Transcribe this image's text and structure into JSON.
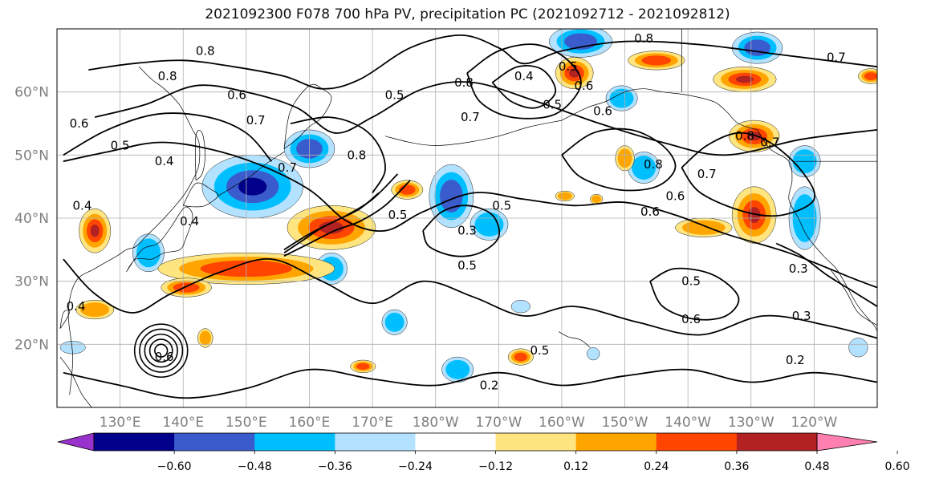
{
  "title": "2021092300 F078 700 hPa PV, precipitation PC (2021092712 - 2021092812)",
  "colors": {
    "grid": "#b0b0b0",
    "contour": "#000000",
    "coast": "#000000",
    "tick_label": "#7f7f7f"
  },
  "map": {
    "lon_range": [
      120,
      250
    ],
    "lat_range": [
      10,
      70
    ],
    "lat_labels": [
      "20°N",
      "30°N",
      "40°N",
      "50°N",
      "60°N"
    ],
    "lon_labels": [
      "130°E",
      "140°E",
      "150°E",
      "160°E",
      "170°E",
      "180°W",
      "170°W",
      "160°W",
      "150°W",
      "140°W",
      "130°W",
      "120°W"
    ]
  },
  "colorbar": {
    "ticks": [
      "−0.60",
      "−0.48",
      "−0.36",
      "−0.24",
      "−0.12",
      "0.12",
      "0.24",
      "0.36",
      "0.48",
      "0.60"
    ],
    "colors": [
      "#9932cc",
      "#00008b",
      "#3a5bcc",
      "#00bfff",
      "#b2e2ff",
      "#ffffff",
      "#ffe57f",
      "#ffa500",
      "#ff4500",
      "#b22222",
      "#ff80b0"
    ]
  },
  "contour_labels": [
    {
      "text": "0.8",
      "lon": 143.5,
      "lat": 66.5
    },
    {
      "text": "0.8",
      "lon": 137.5,
      "lat": 62.5
    },
    {
      "text": "0.6",
      "lon": 148.5,
      "lat": 59.5
    },
    {
      "text": "0.7",
      "lon": 151.5,
      "lat": 55.5
    },
    {
      "text": "0.6",
      "lon": 123.5,
      "lat": 55.0
    },
    {
      "text": "0.5",
      "lon": 130.0,
      "lat": 51.5
    },
    {
      "text": "0.4",
      "lon": 137.0,
      "lat": 49.0
    },
    {
      "text": "0.4",
      "lon": 141.0,
      "lat": 39.5
    },
    {
      "text": "0.4",
      "lon": 124.0,
      "lat": 42.0
    },
    {
      "text": "0.4",
      "lon": 123.0,
      "lat": 26.0
    },
    {
      "text": "0.8",
      "lon": 167.5,
      "lat": 50.0
    },
    {
      "text": "0.7",
      "lon": 156.5,
      "lat": 48.0
    },
    {
      "text": "0.5",
      "lon": 173.5,
      "lat": 59.5
    },
    {
      "text": "0.8",
      "lon": 184.5,
      "lat": 61.5
    },
    {
      "text": "0.7",
      "lon": 185.5,
      "lat": 56.0
    },
    {
      "text": "0.4",
      "lon": 194.0,
      "lat": 62.5
    },
    {
      "text": "0.5",
      "lon": 201.0,
      "lat": 64.0
    },
    {
      "text": "0.6",
      "lon": 203.5,
      "lat": 61.0
    },
    {
      "text": "0.5",
      "lon": 198.5,
      "lat": 58.0
    },
    {
      "text": "0.6",
      "lon": 206.5,
      "lat": 57.0
    },
    {
      "text": "0.8",
      "lon": 213.0,
      "lat": 68.5
    },
    {
      "text": "0.8",
      "lon": 214.5,
      "lat": 48.5
    },
    {
      "text": "0.7",
      "lon": 223.0,
      "lat": 47.0
    },
    {
      "text": "0.6",
      "lon": 218.0,
      "lat": 43.5
    },
    {
      "text": "0.6",
      "lon": 214.0,
      "lat": 41.0
    },
    {
      "text": "0.8",
      "lon": 229.0,
      "lat": 53.0
    },
    {
      "text": "0.7",
      "lon": 233.0,
      "lat": 52.0
    },
    {
      "text": "0.7",
      "lon": 243.5,
      "lat": 65.5
    },
    {
      "text": "0.5",
      "lon": 174.0,
      "lat": 40.5
    },
    {
      "text": "0.3",
      "lon": 185.0,
      "lat": 38.0
    },
    {
      "text": "0.5",
      "lon": 185.0,
      "lat": 32.5
    },
    {
      "text": "0.5",
      "lon": 190.5,
      "lat": 42.0
    },
    {
      "text": "0.5",
      "lon": 220.5,
      "lat": 30.0
    },
    {
      "text": "0.6",
      "lon": 220.5,
      "lat": 24.0
    },
    {
      "text": "0.5",
      "lon": 196.5,
      "lat": 19.0
    },
    {
      "text": "0.3",
      "lon": 237.5,
      "lat": 32.0
    },
    {
      "text": "0.3",
      "lon": 238.0,
      "lat": 24.5
    },
    {
      "text": "0.2",
      "lon": 237.0,
      "lat": 17.5
    },
    {
      "text": "0.2",
      "lon": 188.5,
      "lat": 13.5
    },
    {
      "text": "0.6",
      "lon": 137.0,
      "lat": 18.0
    }
  ],
  "precip_anomalies": [
    {
      "sign": "neg",
      "level": 3,
      "lon": 151.0,
      "lat": 45.0,
      "rx": 8,
      "ry": 5
    },
    {
      "sign": "neg",
      "level": 2,
      "lon": 160.0,
      "lat": 51.0,
      "rx": 4,
      "ry": 3
    },
    {
      "sign": "neg",
      "level": 1,
      "lon": 134.5,
      "lat": 34.5,
      "rx": 2.5,
      "ry": 3
    },
    {
      "sign": "neg",
      "level": 1,
      "lon": 163.5,
      "lat": 32.0,
      "rx": 2.5,
      "ry": 2.5
    },
    {
      "sign": "neg",
      "level": 2,
      "lon": 182.5,
      "lat": 43.5,
      "rx": 3.5,
      "ry": 5
    },
    {
      "sign": "neg",
      "level": 1,
      "lon": 188.5,
      "lat": 39.0,
      "rx": 3,
      "ry": 2.5
    },
    {
      "sign": "neg",
      "level": 2,
      "lon": 203.0,
      "lat": 68.0,
      "rx": 5,
      "ry": 2.5
    },
    {
      "sign": "neg",
      "level": 1,
      "lon": 209.5,
      "lat": 59.0,
      "rx": 2.5,
      "ry": 2
    },
    {
      "sign": "neg",
      "level": 1,
      "lon": 213.0,
      "lat": 48.0,
      "rx": 2.5,
      "ry": 2.5
    },
    {
      "sign": "neg",
      "level": 2,
      "lon": 231.0,
      "lat": 67.0,
      "rx": 4,
      "ry": 2.5
    },
    {
      "sign": "neg",
      "level": 1,
      "lon": 238.5,
      "lat": 49.0,
      "rx": 2.5,
      "ry": 2.5
    },
    {
      "sign": "neg",
      "level": 1,
      "lon": 238.5,
      "lat": 40.0,
      "rx": 2.5,
      "ry": 5
    },
    {
      "sign": "neg",
      "level": 1,
      "lon": 173.5,
      "lat": 23.5,
      "rx": 2,
      "ry": 2
    },
    {
      "sign": "neg",
      "level": 1,
      "lon": 183.5,
      "lat": 16.0,
      "rx": 2.5,
      "ry": 2
    },
    {
      "sign": "neg",
      "level": 0,
      "lon": 122.5,
      "lat": 19.5,
      "rx": 2,
      "ry": 1
    },
    {
      "sign": "neg",
      "level": 0,
      "lon": 193.5,
      "lat": 26.0,
      "rx": 1.5,
      "ry": 1
    },
    {
      "sign": "neg",
      "level": 0,
      "lon": 205.0,
      "lat": 18.5,
      "rx": 1,
      "ry": 1
    },
    {
      "sign": "neg",
      "level": 0,
      "lon": 247.0,
      "lat": 19.5,
      "rx": 1.5,
      "ry": 1.5
    },
    {
      "sign": "pos",
      "level": 3,
      "lon": 163.5,
      "lat": 38.5,
      "rx": 7,
      "ry": 3.5
    },
    {
      "sign": "pos",
      "level": 2,
      "lon": 150.0,
      "lat": 32.0,
      "rx": 14,
      "ry": 2.5
    },
    {
      "sign": "pos",
      "level": 2,
      "lon": 140.5,
      "lat": 29.0,
      "rx": 4,
      "ry": 1.5
    },
    {
      "sign": "pos",
      "level": 3,
      "lon": 126.0,
      "lat": 38.0,
      "rx": 2.5,
      "ry": 3.5
    },
    {
      "sign": "pos",
      "level": 1,
      "lon": 126.0,
      "lat": 25.5,
      "rx": 3,
      "ry": 1.5
    },
    {
      "sign": "pos",
      "level": 1,
      "lon": 143.5,
      "lat": 21.0,
      "rx": 1.2,
      "ry": 1.5
    },
    {
      "sign": "pos",
      "level": 2,
      "lon": 175.5,
      "lat": 44.5,
      "rx": 2.5,
      "ry": 1.5
    },
    {
      "sign": "pos",
      "level": 2,
      "lon": 168.5,
      "lat": 16.5,
      "rx": 2,
      "ry": 1
    },
    {
      "sign": "pos",
      "level": 2,
      "lon": 193.5,
      "lat": 18.0,
      "rx": 2,
      "ry": 1.3
    },
    {
      "sign": "pos",
      "level": 3,
      "lon": 202.0,
      "lat": 63.0,
      "rx": 3,
      "ry": 2.5
    },
    {
      "sign": "pos",
      "level": 2,
      "lon": 215.0,
      "lat": 65.0,
      "rx": 4.5,
      "ry": 1.5
    },
    {
      "sign": "pos",
      "level": 3,
      "lon": 229.0,
      "lat": 62.0,
      "rx": 5,
      "ry": 2
    },
    {
      "sign": "pos",
      "level": 3,
      "lon": 230.5,
      "lat": 53.0,
      "rx": 4,
      "ry": 2.5
    },
    {
      "sign": "pos",
      "level": 1,
      "lon": 210.0,
      "lat": 49.5,
      "rx": 1.5,
      "ry": 2
    },
    {
      "sign": "pos",
      "level": 3,
      "lon": 230.5,
      "lat": 40.5,
      "rx": 3.5,
      "ry": 4.5
    },
    {
      "sign": "pos",
      "level": 1,
      "lon": 222.5,
      "lat": 38.5,
      "rx": 4.5,
      "ry": 1.5
    },
    {
      "sign": "pos",
      "level": 1,
      "lon": 200.5,
      "lat": 43.5,
      "rx": 1.5,
      "ry": 0.8
    },
    {
      "sign": "pos",
      "level": 1,
      "lon": 205.5,
      "lat": 43.0,
      "rx": 1,
      "ry": 0.8
    },
    {
      "sign": "pos",
      "level": 2,
      "lon": 249.0,
      "lat": 62.5,
      "rx": 2,
      "ry": 1.2
    }
  ],
  "pv_contours": [
    {
      "level": "0.8",
      "lons": [
        125,
        132,
        140,
        148,
        156,
        162,
        168,
        176,
        184,
        190,
        194,
        200,
        210,
        222,
        234,
        246,
        250
      ],
      "lats": [
        63.5,
        64.5,
        65,
        64,
        62.5,
        60.5,
        62,
        67,
        69,
        67,
        64.5,
        66.5,
        68,
        67.5,
        66,
        64.5,
        64
      ]
    },
    {
      "level": "0.6",
      "lons": [
        126,
        134,
        142,
        150,
        158,
        164,
        170,
        178,
        186,
        196,
        206,
        216,
        226,
        238,
        250
      ],
      "lats": [
        56,
        58,
        61,
        60,
        57.5,
        53.5,
        56,
        60.5,
        61.5,
        58.5,
        55,
        52,
        50,
        52.5,
        54
      ]
    },
    {
      "level": "0.5",
      "lons": [
        121,
        128,
        136,
        144,
        152,
        160,
        166,
        172,
        178,
        186,
        194,
        202,
        210,
        218,
        226,
        236,
        246,
        250
      ],
      "lats": [
        49,
        50.5,
        52,
        51,
        48.5,
        44.5,
        39.5,
        38,
        41,
        44,
        43,
        42,
        42.5,
        40.5,
        37.5,
        34.5,
        30.5,
        29
      ]
    },
    {
      "level": "0.4",
      "lons": [
        121,
        126,
        132,
        138,
        146,
        154,
        162,
        170,
        178,
        186,
        194,
        202,
        212,
        222,
        232,
        242,
        250
      ],
      "lats": [
        33.5,
        28,
        25,
        28,
        31.5,
        33.5,
        30,
        26.5,
        30,
        27.5,
        24.5,
        26,
        23.5,
        21.5,
        24.5,
        23,
        21
      ]
    },
    {
      "level": "0.2",
      "lons": [
        121,
        130,
        140,
        150,
        160,
        170,
        180,
        190,
        200,
        210,
        220,
        230,
        240,
        250
      ],
      "lats": [
        15.5,
        13.5,
        11.5,
        13,
        16,
        14.5,
        13.5,
        15.5,
        13.5,
        15,
        16,
        14,
        15.5,
        14
      ]
    },
    {
      "level": "0.3",
      "lons": [
        178,
        181,
        185,
        189,
        190,
        187,
        183,
        179,
        178
      ],
      "lats": [
        38,
        41,
        42,
        40.5,
        37,
        34.5,
        34,
        35.5,
        38
      ]
    },
    {
      "level": "0.6",
      "lons": [
        200,
        205,
        211,
        216,
        218,
        215,
        209,
        203,
        200
      ],
      "lats": [
        50,
        53.5,
        54,
        51.5,
        48,
        45,
        44.5,
        46.5,
        50
      ]
    },
    {
      "level": "0.5",
      "lons": [
        185,
        190,
        196,
        201,
        203,
        199,
        192,
        187,
        185
      ],
      "lats": [
        63,
        66.5,
        67.5,
        65,
        61,
        56.5,
        56,
        58.5,
        63
      ]
    },
    {
      "level": "0.4",
      "lons": [
        189,
        193,
        197,
        199,
        196,
        192,
        189
      ],
      "lats": [
        61.5,
        64,
        63.5,
        60,
        57.5,
        58.5,
        61.5
      ]
    },
    {
      "level": "0.7",
      "lons": [
        121,
        128,
        136,
        144,
        150,
        154
      ],
      "lats": [
        50,
        54,
        56.5,
        56,
        53.5,
        49
      ]
    },
    {
      "level": "0.7",
      "lons": [
        157,
        163,
        168,
        171,
        172,
        170
      ],
      "lats": [
        55,
        56,
        54.5,
        51.5,
        47.5,
        44
      ]
    },
    {
      "level": "0.6",
      "lons": [
        156,
        159,
        162,
        166,
        170,
        174
      ],
      "lats": [
        34.5,
        36.5,
        38.5,
        40.5,
        43,
        47
      ]
    },
    {
      "level": "0.6",
      "lons": [
        156,
        160,
        164,
        168,
        172,
        176
      ],
      "lats": [
        34,
        36,
        38,
        39.5,
        42,
        46
      ]
    },
    {
      "level": "0.6",
      "lons": [
        156,
        160,
        164,
        168,
        171
      ],
      "lats": [
        35,
        37.5,
        39.5,
        41.5,
        44
      ]
    },
    {
      "level": "0.5",
      "lons": [
        214,
        218,
        224,
        228,
        226,
        221,
        216,
        214
      ],
      "lats": [
        30,
        32,
        31,
        27.5,
        24.5,
        24,
        26,
        30
      ]
    },
    {
      "level": "0.6",
      "lons": [
        219,
        223,
        228,
        233,
        238,
        240,
        235,
        229,
        222,
        219
      ],
      "lats": [
        48,
        51.5,
        53.5,
        52,
        47.5,
        43,
        40.5,
        41,
        44,
        48
      ]
    },
    {
      "level": "0.3",
      "lons": [
        234,
        238,
        242,
        246,
        250
      ],
      "lats": [
        36,
        34,
        31,
        28.5,
        26
      ]
    }
  ],
  "vortex": {
    "lon": 136.5,
    "lat": 19.0,
    "radii": [
      1.0,
      1.8,
      2.6,
      3.4,
      4.2
    ]
  },
  "coastlines": [
    {
      "name": "east-asia",
      "lons": [
        122,
        122.5,
        121.8,
        123,
        126,
        129.5,
        131,
        132.5,
        134,
        137,
        140,
        141.5,
        142.5,
        142.5,
        141.5,
        140,
        139,
        137,
        135,
        133
      ],
      "lats": [
        12,
        18,
        25,
        30,
        32,
        34,
        35,
        35.5,
        37,
        40,
        43.5,
        46,
        48.5,
        52,
        54,
        57,
        58.5,
        60.5,
        62,
        64
      ]
    },
    {
      "name": "japan",
      "lons": [
        131,
        132.5,
        135,
        137,
        139.5,
        140.5,
        141.5,
        141,
        140,
        138,
        136,
        133.5,
        131
      ],
      "lats": [
        31.5,
        33.5,
        33.5,
        34.5,
        35,
        37,
        40,
        41.5,
        41.5,
        38.5,
        36,
        35,
        31.5
      ]
    },
    {
      "name": "hokkaido",
      "lons": [
        140,
        141.5,
        143.5,
        145.5,
        144.5,
        142,
        140
      ],
      "lats": [
        42,
        41.8,
        42,
        43.5,
        44.5,
        45.5,
        42
      ]
    },
    {
      "name": "sakhalin",
      "lons": [
        142,
        143,
        143.5,
        143,
        142,
        142
      ],
      "lats": [
        46,
        47,
        50,
        53.5,
        53,
        46
      ]
    },
    {
      "name": "kamchatka",
      "lons": [
        156,
        158,
        160,
        162,
        163.5,
        162,
        160,
        157,
        156
      ],
      "lats": [
        51,
        52.5,
        54.5,
        56,
        59,
        60.5,
        61,
        57,
        51
      ]
    },
    {
      "name": "kurils",
      "lons": [
        145.5,
        148,
        150.5,
        153,
        156
      ],
      "lats": [
        43.5,
        45,
        46.5,
        48.5,
        50.5
      ]
    },
    {
      "name": "aleutians",
      "lons": [
        172,
        176,
        180,
        185,
        190,
        195,
        200
      ],
      "lats": [
        53,
        52,
        51.5,
        52,
        53,
        54.5,
        55.5
      ]
    },
    {
      "name": "alaska",
      "lons": [
        200,
        204,
        207,
        210,
        213,
        216,
        220,
        224,
        226,
        228,
        231
      ],
      "lats": [
        55.5,
        57.5,
        58.5,
        60,
        60.5,
        60,
        59.5,
        58.5,
        57,
        55,
        54
      ]
    },
    {
      "name": "na-west",
      "lons": [
        231,
        233,
        236,
        236.5,
        236,
        237.5,
        239,
        241.5,
        243.5,
        245,
        247,
        249.5,
        250
      ],
      "lats": [
        54,
        51,
        49,
        46,
        43,
        40,
        37,
        34,
        32,
        29.5,
        26,
        23,
        22
      ]
    },
    {
      "name": "baja",
      "lons": [
        242.5,
        245,
        247,
        250
      ],
      "lats": [
        32,
        28.5,
        25,
        23
      ]
    },
    {
      "name": "hawaii",
      "lons": [
        199.5,
        201,
        203,
        204.5
      ],
      "lats": [
        22,
        21.2,
        20.7,
        19.5
      ]
    },
    {
      "name": "philippines",
      "lons": [
        120.5,
        122,
        123,
        124,
        125.5
      ],
      "lats": [
        18,
        16,
        14,
        12,
        10
      ]
    },
    {
      "name": "taiwan",
      "lons": [
        120.5,
        121.5,
        122,
        121,
        120.5
      ],
      "lats": [
        22.5,
        24,
        25.3,
        25,
        22.5
      ]
    },
    {
      "name": "us-canada-border",
      "lons": [
        237,
        250
      ],
      "lats": [
        49,
        49
      ]
    },
    {
      "name": "alaska-border",
      "lons": [
        219,
        219
      ],
      "lats": [
        60,
        70
      ]
    }
  ]
}
